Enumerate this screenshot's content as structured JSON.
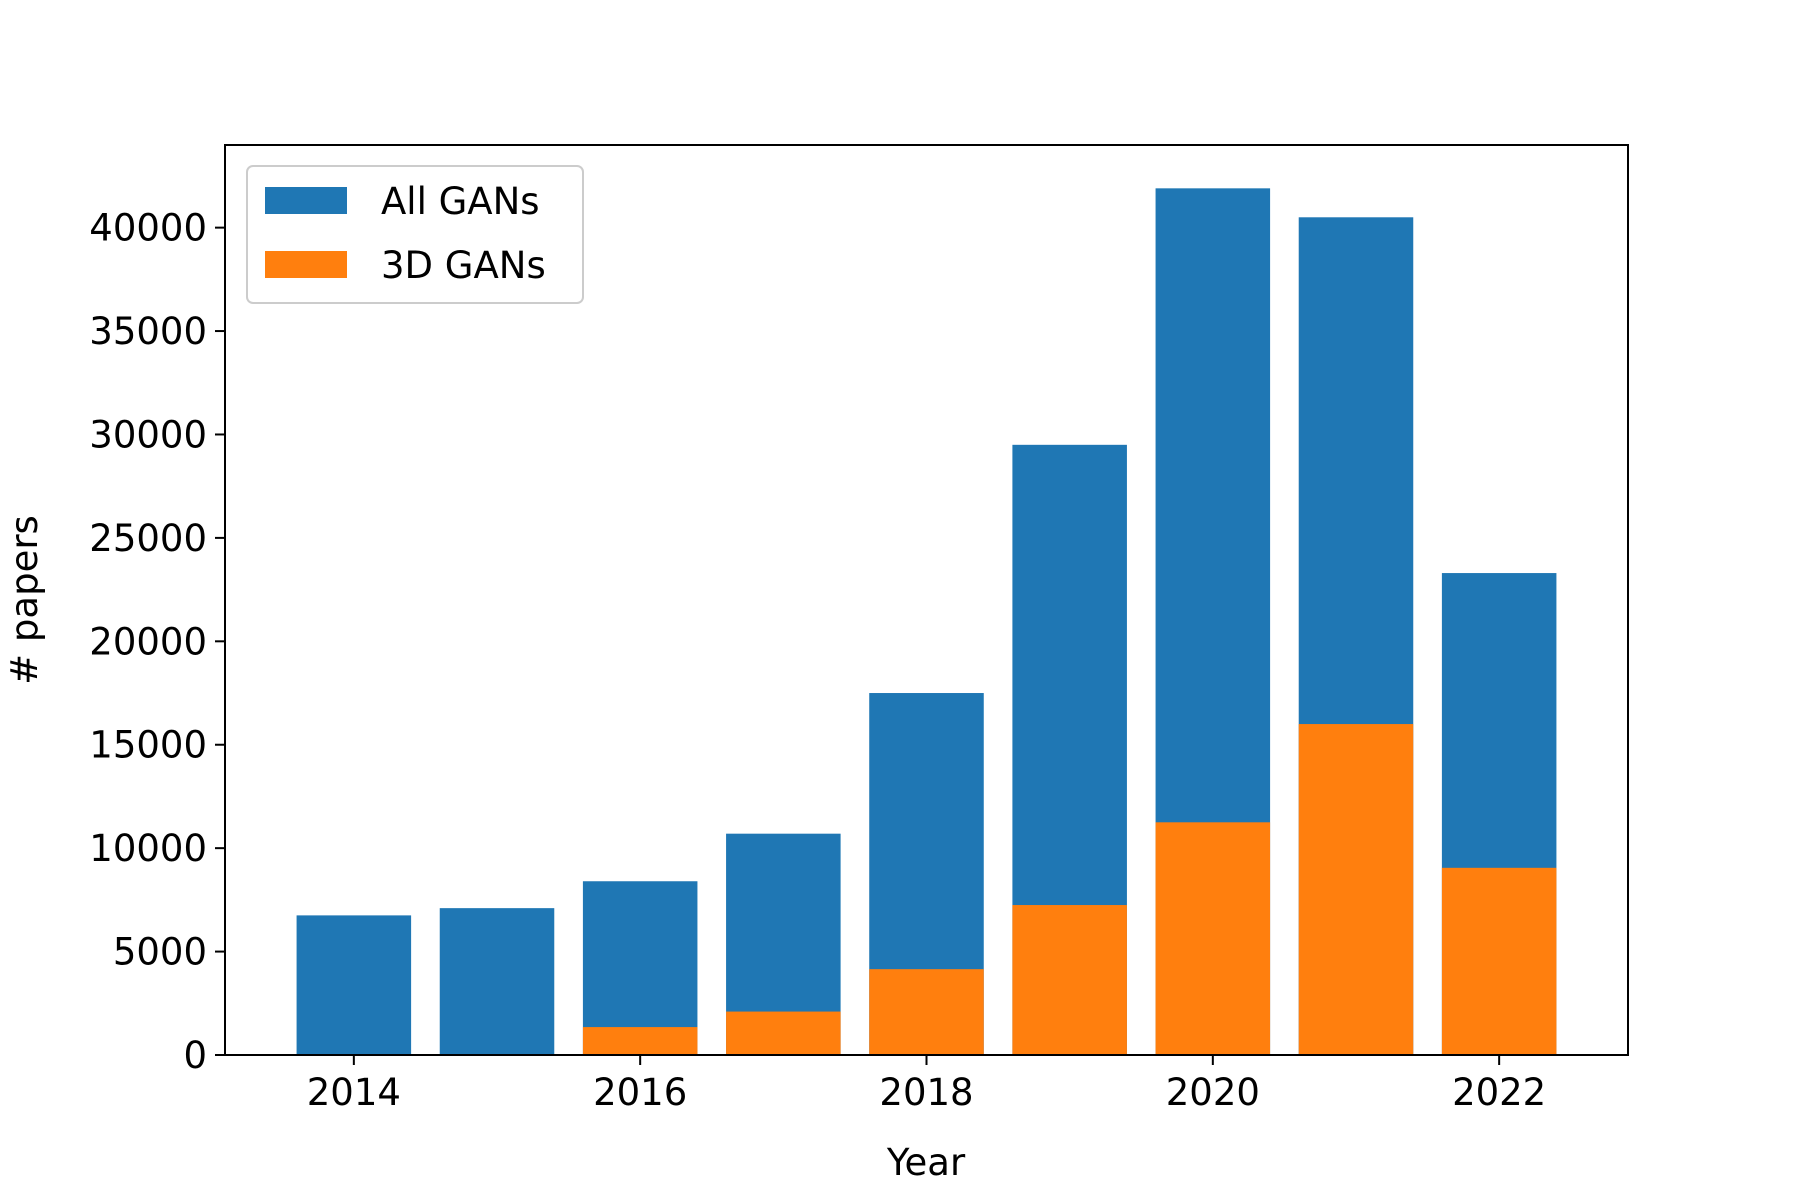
{
  "chart_data": {
    "type": "bar",
    "title": "",
    "xlabel": "Year",
    "ylabel": "# papers",
    "x": [
      2014,
      2015,
      2016,
      2017,
      2018,
      2019,
      2020,
      2021,
      2022
    ],
    "series": [
      {
        "name": "All GANs",
        "color": "#1f77b4",
        "values": [
          6750,
          7100,
          8400,
          10700,
          17500,
          29500,
          41900,
          40500,
          23300
        ]
      },
      {
        "name": "3D GANs",
        "color": "#ff7f0e",
        "values": [
          0,
          0,
          1350,
          2100,
          4150,
          7250,
          11250,
          16000,
          9050
        ]
      }
    ],
    "overlay": true,
    "xlim": [
      2013.1,
      2022.9
    ],
    "ylim": [
      0,
      43995
    ],
    "xticks": [
      2014,
      2016,
      2018,
      2020,
      2022
    ],
    "yticks": [
      0,
      5000,
      10000,
      15000,
      20000,
      25000,
      30000,
      35000,
      40000
    ],
    "legend_position": "upper-left",
    "grid": false
  }
}
